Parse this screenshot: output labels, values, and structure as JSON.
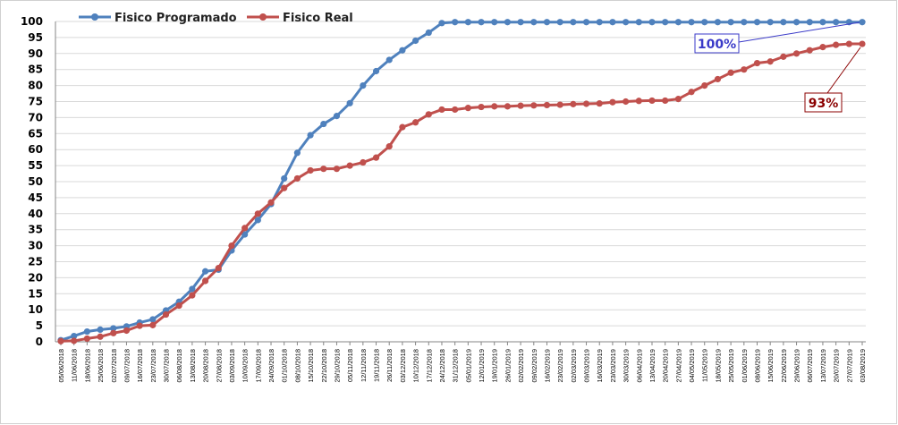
{
  "chart_data": {
    "type": "line",
    "title": "",
    "xlabel": "",
    "ylabel": "",
    "ylim": [
      0,
      100
    ],
    "y_ticks": [
      0,
      5,
      10,
      15,
      20,
      25,
      30,
      35,
      40,
      45,
      50,
      55,
      60,
      65,
      70,
      75,
      80,
      85,
      90,
      95,
      100
    ],
    "grid": "horizontal",
    "legend_position": "top-left",
    "x": [
      "05/06/2018",
      "11/06/2018",
      "18/06/2018",
      "25/06/2018",
      "02/07/2018",
      "09/07/2018",
      "16/07/2018",
      "23/07/2018",
      "30/07/2018",
      "06/08/2018",
      "13/08/2018",
      "20/08/2018",
      "27/08/2018",
      "03/09/2018",
      "10/09/2018",
      "17/09/2018",
      "24/09/2018",
      "01/10/2018",
      "08/10/2018",
      "15/10/2018",
      "22/10/2018",
      "29/10/2018",
      "05/11/2018",
      "12/11/2018",
      "19/11/2018",
      "26/11/2018",
      "03/12/2018",
      "10/12/2018",
      "17/12/2018",
      "24/12/2018",
      "31/12/2018",
      "05/01/2019",
      "12/01/2019",
      "19/01/2019",
      "26/01/2019",
      "02/02/2019",
      "09/02/2019",
      "16/02/2019",
      "23/02/2019",
      "02/03/2019",
      "09/03/2019",
      "16/03/2019",
      "23/03/2019",
      "30/03/2019",
      "06/04/2019",
      "13/04/2019",
      "20/04/2019",
      "27/04/2019",
      "04/05/2019",
      "11/05/2019",
      "18/05/2019",
      "25/05/2019",
      "01/06/2019",
      "08/06/2019",
      "15/06/2019",
      "22/06/2019",
      "29/06/2019",
      "06/07/2019",
      "13/07/2019",
      "20/07/2019",
      "27/07/2019",
      "03/08/2019"
    ],
    "series": [
      {
        "name": "Fisico Programado",
        "color": "#4f81bd",
        "values": [
          0.5,
          1.8,
          3.2,
          3.8,
          4.2,
          4.8,
          6,
          7,
          9.8,
          12.5,
          16.5,
          22,
          22.5,
          28.5,
          33.5,
          38,
          43,
          51,
          59,
          64.5,
          68,
          70.5,
          74.5,
          80,
          84.5,
          88,
          91,
          94,
          96.5,
          99.5,
          99.8,
          99.8,
          99.8,
          99.8,
          99.8,
          99.8,
          99.8,
          99.8,
          99.8,
          99.8,
          99.8,
          99.8,
          99.8,
          99.8,
          99.8,
          99.8,
          99.8,
          99.8,
          99.8,
          99.8,
          99.8,
          99.8,
          99.8,
          99.8,
          99.8,
          99.8,
          99.8,
          99.8,
          99.8,
          99.8,
          99.8,
          99.8
        ]
      },
      {
        "name": "Fisico Real",
        "color": "#c0504d",
        "values": [
          0.2,
          0.3,
          1,
          1.6,
          2.7,
          3.5,
          5,
          5.2,
          8.5,
          11.3,
          14.5,
          19,
          23,
          30,
          35.5,
          40,
          43.5,
          48,
          51,
          53.5,
          54,
          54,
          55,
          56,
          57.5,
          61,
          67,
          68.5,
          71,
          72.5,
          72.5,
          73,
          73.3,
          73.5,
          73.5,
          73.7,
          73.8,
          73.9,
          74,
          74.2,
          74.3,
          74.4,
          74.8,
          75,
          75.2,
          75.3,
          75.3,
          75.8,
          78,
          80,
          82,
          84,
          85,
          87,
          87.5,
          89,
          90,
          91,
          92,
          92.7,
          93,
          93
        ]
      }
    ],
    "annotations": [
      {
        "text": "100%",
        "series": "Fisico Programado",
        "color": "#3a3ac8"
      },
      {
        "text": "93%",
        "series": "Fisico Real",
        "color": "#8b0000"
      }
    ]
  }
}
